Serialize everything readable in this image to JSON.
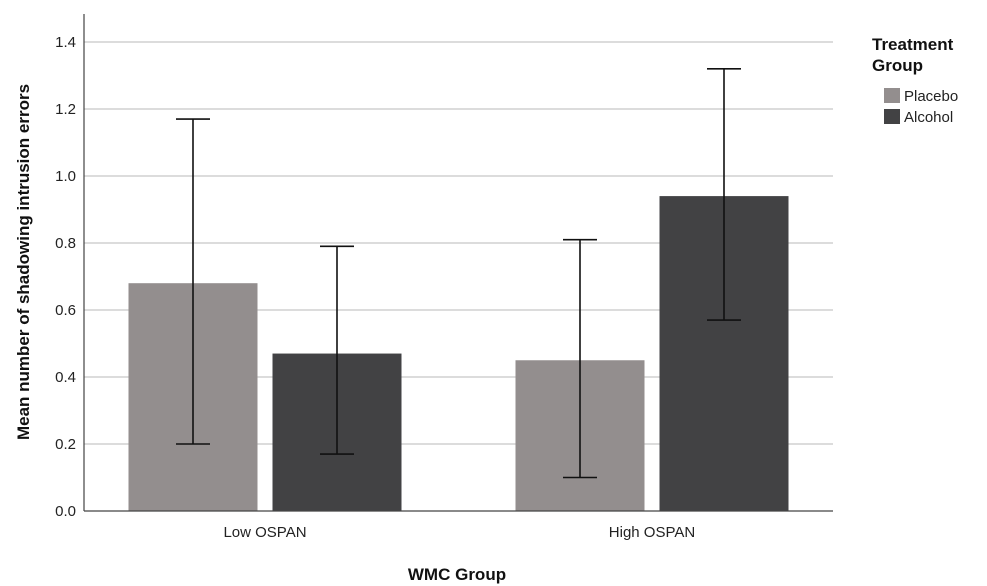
{
  "chart_data": {
    "type": "bar",
    "title": "",
    "xlabel": "WMC Group",
    "ylabel": "Mean number of shadowing intrusion errors",
    "categories": [
      "Low OSPAN",
      "High OSPAN"
    ],
    "series": [
      {
        "name": "Placebo",
        "color": "#938e8e",
        "values": [
          0.68,
          0.45
        ],
        "error_low": [
          0.2,
          0.1
        ],
        "error_high": [
          1.17,
          0.81
        ]
      },
      {
        "name": "Alcohol",
        "color": "#424244",
        "values": [
          0.47,
          0.94
        ],
        "error_low": [
          0.17,
          0.57
        ],
        "error_high": [
          0.79,
          1.32
        ]
      }
    ],
    "ylim": [
      0,
      1.4
    ],
    "yticks": [
      "0.0",
      "0.2",
      "0.4",
      "0.6",
      "0.8",
      "1.0",
      "1.2",
      "1.4"
    ],
    "grid": true,
    "legend": {
      "title": "Treatment Group",
      "title_lines": [
        "Treatment",
        "Group"
      ],
      "placement": "right-top"
    }
  }
}
